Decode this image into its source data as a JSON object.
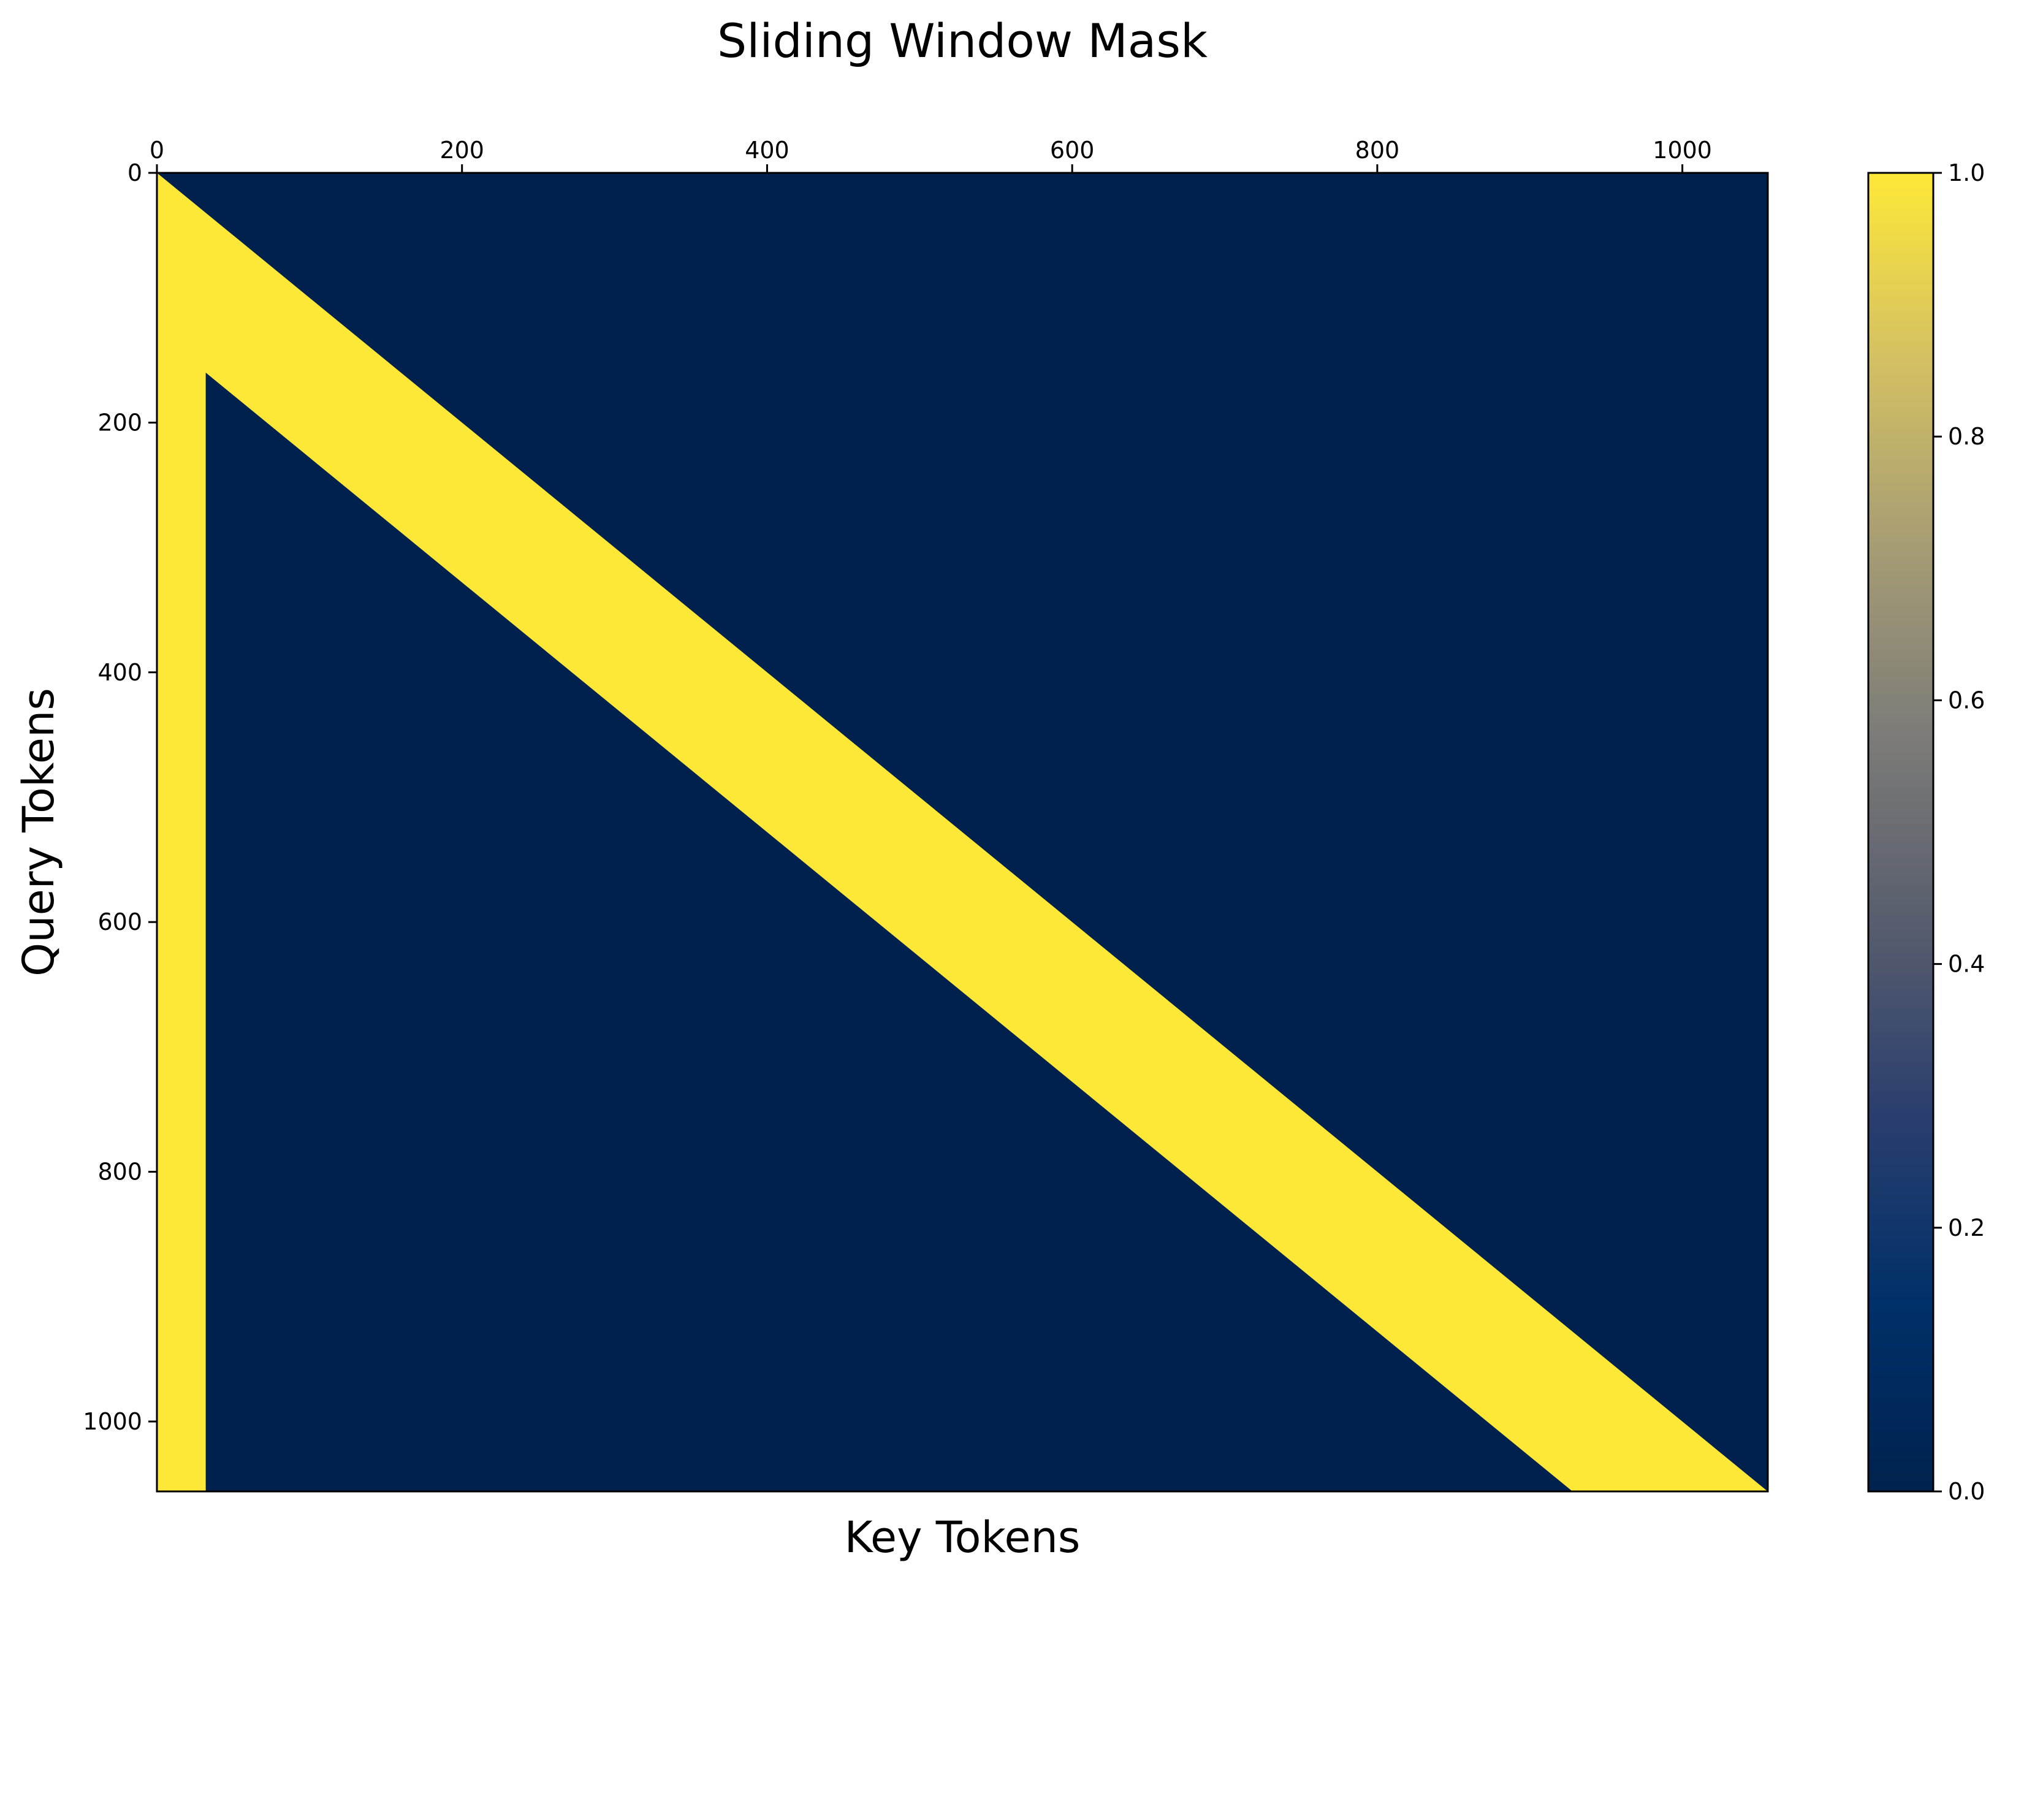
{
  "chart_data": {
    "type": "heatmap",
    "title": "Sliding Window Mask",
    "xlabel": "Key Tokens",
    "ylabel": "Query Tokens",
    "n_tokens": 1056,
    "x_axis_position": "top",
    "y_axis_inverted": true,
    "xlim": [
      0,
      1056
    ],
    "ylim": [
      1056,
      0
    ],
    "x_ticks": [
      0,
      200,
      400,
      600,
      800,
      1000
    ],
    "y_ticks": [
      0,
      200,
      400,
      600,
      800,
      1000
    ],
    "mask": {
      "window_size": 128,
      "global_tokens": 32,
      "pattern": "sliding window (query attends to keys in [q - 128, q]) plus first 32 global key tokens",
      "value_inside": 1.0,
      "value_outside": 0.0
    },
    "colormap": "cividis",
    "colors": {
      "masked": "#00204d",
      "attended": "#fde737"
    },
    "colorbar": {
      "range": [
        0.0,
        1.0
      ],
      "ticks": [
        "0.0",
        "0.2",
        "0.4",
        "0.6",
        "0.8",
        "1.0"
      ],
      "stops": [
        "#00224e",
        "#003069",
        "#2a3e6e",
        "#575d6d",
        "#7c7b78",
        "#a59c74",
        "#d3c063",
        "#fee838"
      ]
    },
    "grid": false,
    "legend": "none"
  }
}
